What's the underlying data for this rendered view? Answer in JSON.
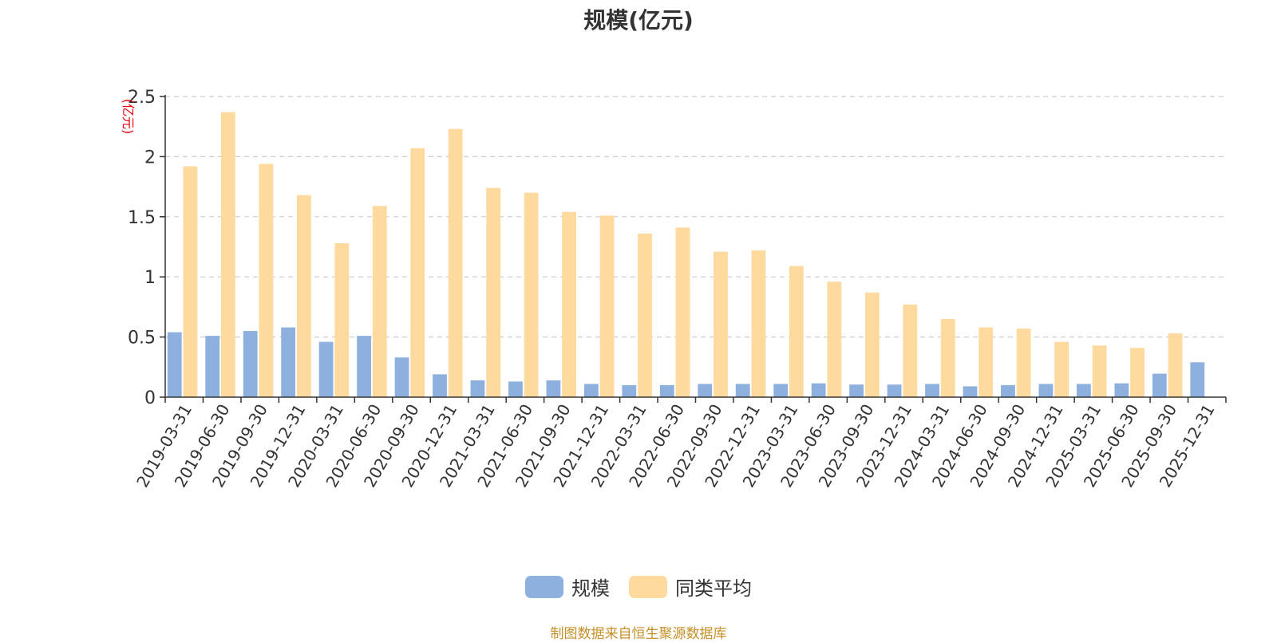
{
  "chart_data": {
    "type": "bar",
    "title": "规模(亿元)",
    "ylabel": "(亿元)",
    "ylim": [
      0,
      2.5
    ],
    "yticks": [
      "0",
      "0.5",
      "1",
      "1.5",
      "2",
      "2.5"
    ],
    "grid": true,
    "legend_position": "bottom",
    "categories": [
      "2019-03-31",
      "2019-06-30",
      "2019-09-30",
      "2019-12-31",
      "2020-03-31",
      "2020-06-30",
      "2020-09-30",
      "2020-12-31",
      "2021-03-31",
      "2021-06-30",
      "2021-09-30",
      "2021-12-31",
      "2022-03-31",
      "2022-06-30",
      "2022-09-30",
      "2022-12-31",
      "2023-03-31",
      "2023-06-30",
      "2023-09-30",
      "2023-12-31",
      "2024-03-31",
      "2024-06-30",
      "2024-09-30",
      "2024-12-31",
      "2025-03-31",
      "2025-06-30",
      "2025-09-30",
      "2025-12-31"
    ],
    "series": [
      {
        "name": "规模",
        "color": "#8eb0de",
        "values": [
          0.54,
          0.51,
          0.55,
          0.58,
          0.46,
          0.51,
          0.33,
          0.19,
          0.14,
          0.13,
          0.14,
          0.11,
          0.1,
          0.1,
          0.11,
          0.11,
          0.11,
          0.115,
          0.105,
          0.105,
          0.11,
          0.09,
          0.1,
          0.11,
          0.11,
          0.115,
          0.195,
          0.29
        ]
      },
      {
        "name": "同类平均",
        "color": "#ffda9e",
        "values": [
          1.92,
          2.37,
          1.94,
          1.68,
          1.28,
          1.59,
          2.07,
          2.23,
          1.74,
          1.7,
          1.54,
          1.51,
          1.36,
          1.41,
          1.21,
          1.22,
          1.09,
          0.96,
          0.87,
          0.77,
          0.65,
          0.58,
          0.57,
          0.46,
          0.43,
          0.41,
          0.53,
          null
        ]
      }
    ]
  },
  "footer": {
    "source": "制图数据来自恒生聚源数据库"
  }
}
